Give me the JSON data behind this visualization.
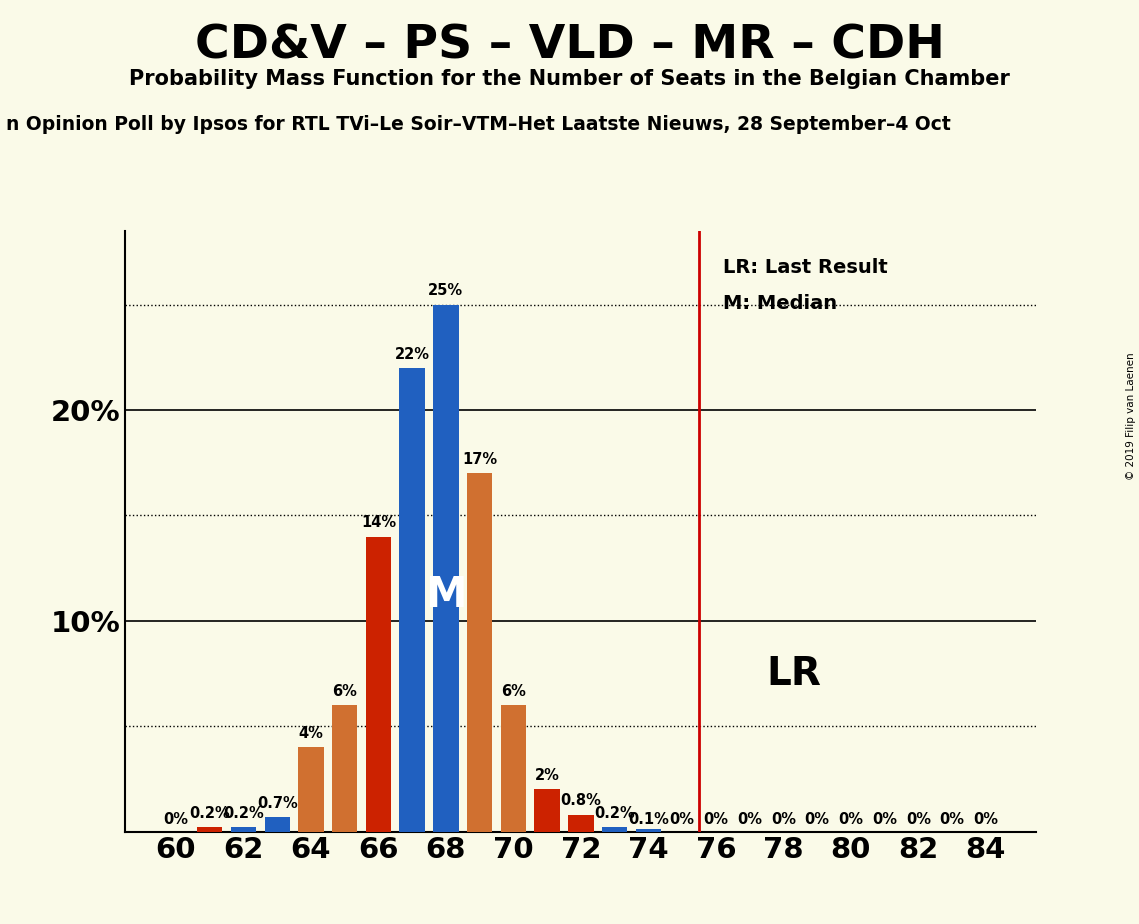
{
  "title": "CD&V – PS – VLD – MR – CDH",
  "subtitle": "Probability Mass Function for the Number of Seats in the Belgian Chamber",
  "poll_text": "n Opinion Poll by Ipsos for RTL TVi–Le Soir–VTM–Het Laatste Nieuws, 28 September–4 Oct",
  "background_color": "#FAFAE8",
  "lr_line_x": 75.5,
  "blue_color": "#2060C0",
  "orange_color": "#D07030",
  "red_color": "#CC2200",
  "lr_line_color": "#CC0000",
  "copyright_text": "© 2019 Filip van Laenen",
  "lr_label": "LR: Last Result",
  "m_label": "M: Median",
  "lr_side_label": "LR",
  "seats": [
    60,
    61,
    62,
    63,
    64,
    65,
    66,
    67,
    68,
    69,
    70,
    71,
    72,
    73,
    74,
    75,
    76,
    77,
    78,
    79,
    80,
    81,
    82,
    83,
    84
  ],
  "probs": [
    0.0,
    0.002,
    0.002,
    0.007,
    0.04,
    0.06,
    0.14,
    0.22,
    0.25,
    0.17,
    0.06,
    0.02,
    0.008,
    0.002,
    0.001,
    0.0,
    0.0,
    0.0,
    0.0,
    0.0,
    0.0,
    0.0,
    0.0,
    0.0,
    0.0
  ],
  "colors": [
    "red",
    "red",
    "blue",
    "blue",
    "orange",
    "orange",
    "red",
    "blue",
    "blue",
    "orange",
    "orange",
    "red",
    "red",
    "blue",
    "blue",
    "red",
    "red",
    "red",
    "red",
    "red",
    "red",
    "red",
    "red",
    "red",
    "red"
  ],
  "labels": [
    "0%",
    "0.2%",
    "0.2%",
    "0.7%",
    "4%",
    "6%",
    "14%",
    "22%",
    "25%",
    "17%",
    "6%",
    "2%",
    "0.8%",
    "0.2%",
    "0.1%",
    "0%",
    "0%",
    "0%",
    "0%",
    "0%",
    "0%",
    "0%",
    "0%",
    "0%",
    "0%"
  ],
  "median_seat_idx": 8,
  "solid_grid": [
    0.1,
    0.2
  ],
  "dotted_grid": [
    0.05,
    0.15,
    0.25
  ],
  "ytick_positions": [
    0.1,
    0.2
  ],
  "ytick_labels": [
    "10%",
    "20%"
  ],
  "ylim": [
    0,
    0.285
  ],
  "xlim": [
    58.5,
    85.5
  ],
  "xticks": [
    60,
    62,
    64,
    66,
    68,
    70,
    72,
    74,
    76,
    78,
    80,
    82,
    84
  ]
}
